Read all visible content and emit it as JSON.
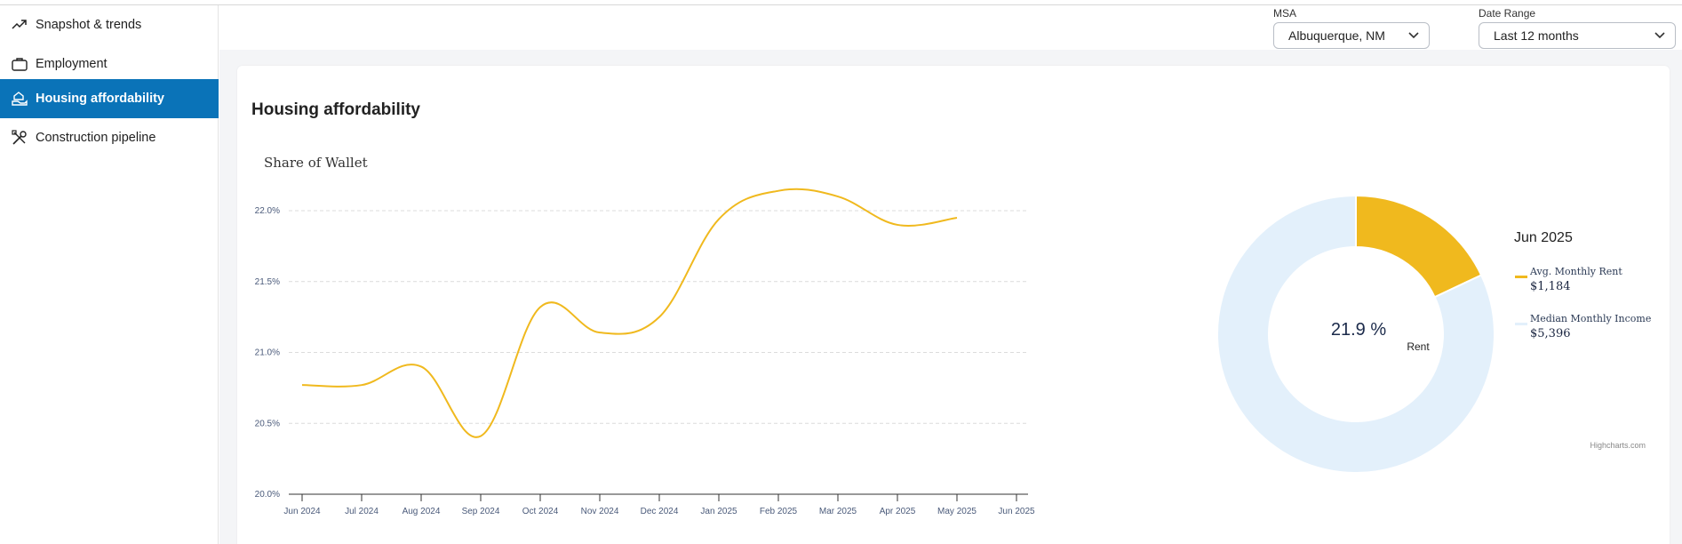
{
  "sidebar": {
    "items": [
      {
        "label": "Snapshot & trends",
        "icon": "trending-up-icon",
        "active": false
      },
      {
        "label": "Employment",
        "icon": "briefcase-icon",
        "active": false
      },
      {
        "label": "Housing affordability",
        "icon": "hand-house-icon",
        "active": true
      },
      {
        "label": "Construction pipeline",
        "icon": "tools-icon",
        "active": false
      }
    ]
  },
  "filters": {
    "msa": {
      "label": "MSA",
      "value": "Albuquerque, NM"
    },
    "date_range": {
      "label": "Date Range",
      "value": "Last 12 months"
    }
  },
  "card": {
    "title": "Housing affordability"
  },
  "colors": {
    "accent": "#0a73b8",
    "rent": "#f0b91e",
    "income": "#e3f0fb"
  },
  "chart_data": [
    {
      "type": "line",
      "title": "Share of Wallet",
      "categories": [
        "Jun 2024",
        "Jul 2024",
        "Aug 2024",
        "Sep 2024",
        "Oct 2024",
        "Nov 2024",
        "Dec 2024",
        "Jan 2025",
        "Feb 2025",
        "Mar 2025",
        "Apr 2025",
        "May 2025",
        "Jun 2025"
      ],
      "series": [
        {
          "values": [
            20.77,
            20.77,
            20.9,
            20.41,
            21.32,
            21.14,
            21.25,
            21.94,
            22.14,
            22.1,
            21.9,
            21.95,
            null
          ]
        }
      ],
      "yticks": [
        "20.0%",
        "20.5%",
        "21.0%",
        "21.5%",
        "22.0%"
      ],
      "ylim": [
        20.0,
        22.0
      ],
      "grid": true
    },
    {
      "type": "pie",
      "legend_title": "Jun 2025",
      "center_value": "21.9 %",
      "center_label": "Rent",
      "slices": [
        {
          "name": "Avg. Monthly Rent",
          "value": 1184,
          "display": "$1,184"
        },
        {
          "name": "Median Monthly Income",
          "value": 5396,
          "display": "$5,396"
        }
      ],
      "credits": "Highcharts.com"
    }
  ]
}
